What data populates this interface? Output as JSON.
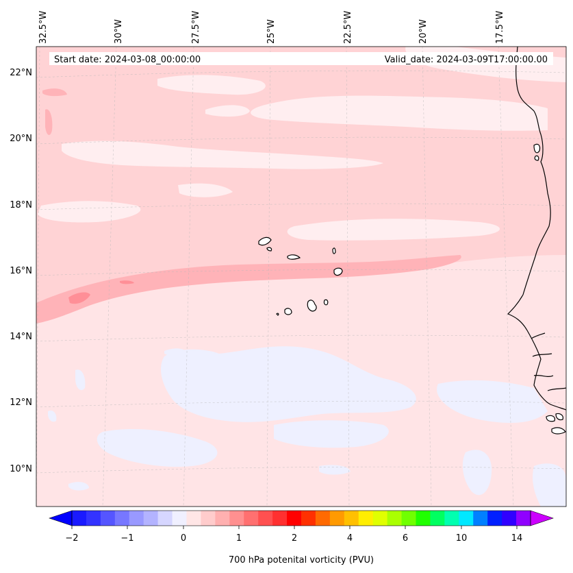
{
  "header": {
    "start_date": "Start date: 2024-03-08_00:00:00",
    "valid_date": "Valid_date: 2024-03-09T17:00:00.00"
  },
  "map": {
    "lon_labels": [
      "32.5°W",
      "30°W",
      "27.5°W",
      "25°W",
      "22.5°W",
      "20°W",
      "17.5°W"
    ],
    "lat_labels": [
      "22°N",
      "20°N",
      "18°N",
      "16°N",
      "14°N",
      "12°N",
      "10°N"
    ],
    "colors": {
      "background": "#ffe4e6",
      "band_light": "#ffd3d5",
      "band_mid": "#ffb3b8",
      "band_strong": "#ff8f97",
      "pale_blue": "#eef0ff",
      "pale_white": "#ffeef0",
      "coast": "#000000"
    }
  },
  "colorbar": {
    "tick_labels": [
      "−2",
      "−1",
      "0",
      "1",
      "2",
      "4",
      "6",
      "10",
      "14"
    ],
    "label": "700 hPa potenital vorticity (PVU)",
    "colors": [
      "#1a1aff",
      "#3333ff",
      "#5555ff",
      "#7777ff",
      "#9999ff",
      "#b3b3ff",
      "#d6d6ff",
      "#f0f0ff",
      "#ffe6e6",
      "#ffcccc",
      "#ffb0b0",
      "#ff9090",
      "#ff7070",
      "#ff5050",
      "#ff3030",
      "#ff0000",
      "#ff3000",
      "#ff6a00",
      "#ff9a00",
      "#ffc000",
      "#ffee00",
      "#e0ff00",
      "#aaff00",
      "#70ff00",
      "#20ff00",
      "#00ff60",
      "#00ffb0",
      "#00e8ff",
      "#0080ff",
      "#0020ff",
      "#3000ff",
      "#9000ff"
    ]
  }
}
